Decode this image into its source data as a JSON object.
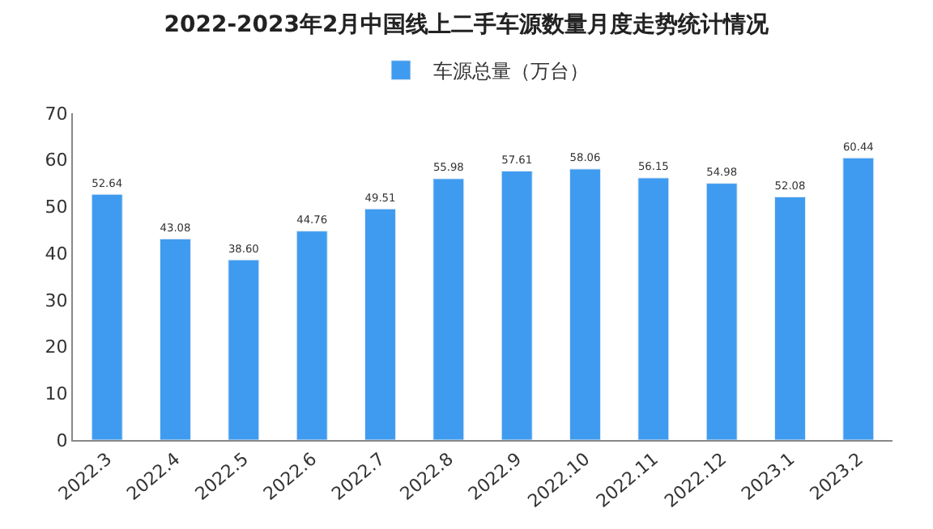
{
  "chart_data": {
    "type": "bar",
    "title": "2022-2023年2月中国线上二手车源数量月度走势统计情况",
    "categories": [
      "2022.3",
      "2022.4",
      "2022.5",
      "2022.6",
      "2022.7",
      "2022.8",
      "2022.9",
      "2022.10",
      "2022.11",
      "2022.12",
      "2023.1",
      "2023.2"
    ],
    "series": [
      {
        "name": "车源总量（万台）",
        "color": "#3f9bef",
        "values": [
          52.64,
          43.08,
          38.6,
          44.76,
          49.51,
          55.98,
          57.61,
          58.06,
          56.15,
          54.98,
          52.08,
          60.44
        ]
      }
    ],
    "value_labels": [
      "52.64",
      "43.08",
      "38.60",
      "44.76",
      "49.51",
      "55.98",
      "57.61",
      "58.06",
      "56.15",
      "54.98",
      "52.08",
      "60.44"
    ],
    "ylim": [
      0,
      70
    ],
    "yticks": [
      0,
      10,
      20,
      30,
      40,
      50,
      60,
      70
    ],
    "legend": "top"
  }
}
